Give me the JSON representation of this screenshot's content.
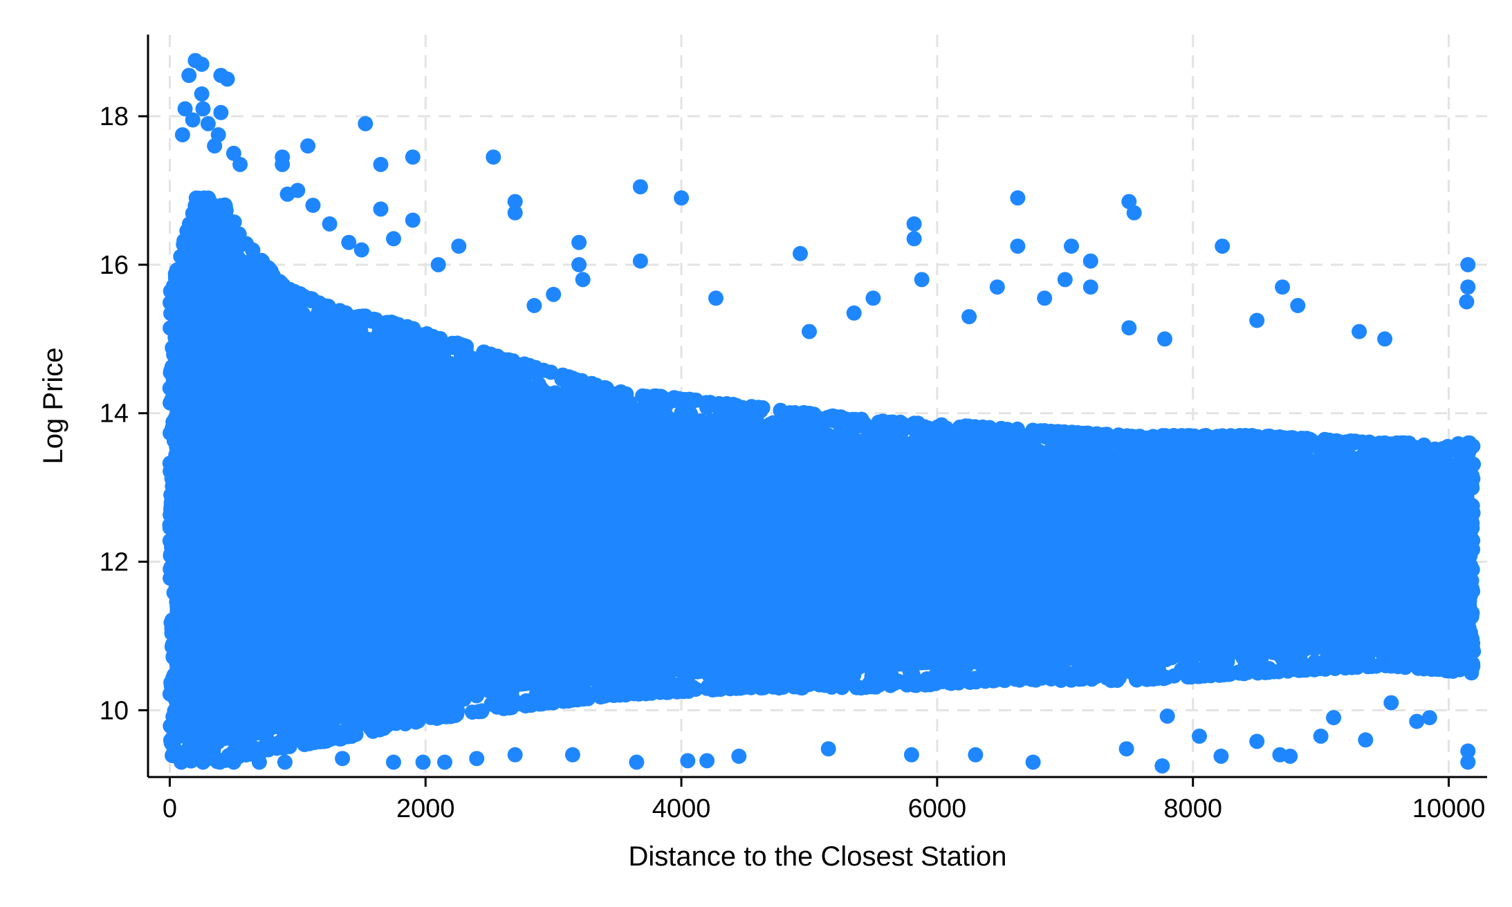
{
  "chart_data": {
    "type": "scatter",
    "title": "",
    "xlabel": "Distance to the Closest Station",
    "ylabel": "Log Price",
    "xlim": [
      -170,
      10300
    ],
    "ylim": [
      9.1,
      19.1
    ],
    "xticks": [
      0,
      2000,
      4000,
      6000,
      8000,
      10000
    ],
    "yticks": [
      10,
      12,
      14,
      16,
      18
    ],
    "xtick_labels": [
      "0",
      "2000",
      "4000",
      "6000",
      "8000",
      "10000"
    ],
    "ytick_labels": [
      "10",
      "12",
      "14",
      "16",
      "18"
    ],
    "grid": true,
    "marker_color": "#1e87ff",
    "series": [
      {
        "dense_band": [
          {
            "x": 0,
            "y_low": 9.4,
            "y_high": 15.6
          },
          {
            "x": 200,
            "y_low": 9.3,
            "y_high": 16.9
          },
          {
            "x": 400,
            "y_low": 9.3,
            "y_high": 16.9
          },
          {
            "x": 600,
            "y_low": 9.4,
            "y_high": 16.3
          },
          {
            "x": 900,
            "y_low": 9.5,
            "y_high": 15.7
          },
          {
            "x": 1300,
            "y_low": 9.6,
            "y_high": 15.4
          },
          {
            "x": 1800,
            "y_low": 9.8,
            "y_high": 15.2
          },
          {
            "x": 2500,
            "y_low": 10.0,
            "y_high": 14.8
          },
          {
            "x": 3500,
            "y_low": 10.2,
            "y_high": 14.3
          },
          {
            "x": 4500,
            "y_low": 10.3,
            "y_high": 14.1
          },
          {
            "x": 5500,
            "y_low": 10.3,
            "y_high": 13.9
          },
          {
            "x": 6500,
            "y_low": 10.4,
            "y_high": 13.8
          },
          {
            "x": 7500,
            "y_low": 10.4,
            "y_high": 13.7
          },
          {
            "x": 8500,
            "y_low": 10.5,
            "y_high": 13.7
          },
          {
            "x": 9500,
            "y_low": 10.6,
            "y_high": 13.6
          },
          {
            "x": 10200,
            "y_low": 10.5,
            "y_high": 13.6
          }
        ],
        "outliers": [
          {
            "x": 200,
            "y": 18.75
          },
          {
            "x": 250,
            "y": 18.7
          },
          {
            "x": 150,
            "y": 18.55
          },
          {
            "x": 400,
            "y": 18.55
          },
          {
            "x": 450,
            "y": 18.5
          },
          {
            "x": 250,
            "y": 18.3
          },
          {
            "x": 120,
            "y": 18.1
          },
          {
            "x": 260,
            "y": 18.1
          },
          {
            "x": 400,
            "y": 18.05
          },
          {
            "x": 180,
            "y": 17.95
          },
          {
            "x": 300,
            "y": 17.9
          },
          {
            "x": 100,
            "y": 17.75
          },
          {
            "x": 380,
            "y": 17.75
          },
          {
            "x": 350,
            "y": 17.6
          },
          {
            "x": 500,
            "y": 17.5
          },
          {
            "x": 550,
            "y": 17.35
          },
          {
            "x": 880,
            "y": 17.45
          },
          {
            "x": 880,
            "y": 17.35
          },
          {
            "x": 1080,
            "y": 17.6
          },
          {
            "x": 1530,
            "y": 17.9
          },
          {
            "x": 1650,
            "y": 17.35
          },
          {
            "x": 1900,
            "y": 17.45
          },
          {
            "x": 1000,
            "y": 17.0
          },
          {
            "x": 920,
            "y": 16.95
          },
          {
            "x": 1120,
            "y": 16.8
          },
          {
            "x": 1250,
            "y": 16.55
          },
          {
            "x": 1650,
            "y": 16.75
          },
          {
            "x": 1900,
            "y": 16.6
          },
          {
            "x": 1400,
            "y": 16.3
          },
          {
            "x": 1500,
            "y": 16.2
          },
          {
            "x": 1750,
            "y": 16.35
          },
          {
            "x": 2260,
            "y": 16.25
          },
          {
            "x": 2100,
            "y": 16.0
          },
          {
            "x": 2530,
            "y": 17.45
          },
          {
            "x": 2700,
            "y": 16.85
          },
          {
            "x": 2700,
            "y": 16.7
          },
          {
            "x": 3200,
            "y": 16.3
          },
          {
            "x": 3200,
            "y": 16.0
          },
          {
            "x": 3680,
            "y": 17.05
          },
          {
            "x": 3680,
            "y": 16.05
          },
          {
            "x": 4000,
            "y": 16.9
          },
          {
            "x": 4270,
            "y": 15.55
          },
          {
            "x": 4930,
            "y": 16.15
          },
          {
            "x": 5820,
            "y": 16.55
          },
          {
            "x": 5820,
            "y": 16.35
          },
          {
            "x": 5880,
            "y": 15.8
          },
          {
            "x": 6630,
            "y": 16.9
          },
          {
            "x": 6630,
            "y": 16.25
          },
          {
            "x": 6470,
            "y": 15.7
          },
          {
            "x": 6840,
            "y": 15.55
          },
          {
            "x": 7050,
            "y": 16.25
          },
          {
            "x": 7200,
            "y": 16.05
          },
          {
            "x": 7200,
            "y": 15.7
          },
          {
            "x": 7000,
            "y": 15.8
          },
          {
            "x": 7500,
            "y": 16.85
          },
          {
            "x": 7540,
            "y": 16.7
          },
          {
            "x": 8230,
            "y": 16.25
          },
          {
            "x": 8700,
            "y": 15.7
          },
          {
            "x": 8820,
            "y": 15.45
          },
          {
            "x": 9500,
            "y": 15.0
          },
          {
            "x": 10150,
            "y": 16.0
          },
          {
            "x": 10150,
            "y": 15.7
          },
          {
            "x": 10140,
            "y": 15.5
          },
          {
            "x": 5000,
            "y": 15.1
          },
          {
            "x": 5350,
            "y": 15.35
          },
          {
            "x": 5500,
            "y": 15.55
          },
          {
            "x": 6250,
            "y": 15.3
          },
          {
            "x": 2850,
            "y": 15.45
          },
          {
            "x": 3000,
            "y": 15.6
          },
          {
            "x": 3230,
            "y": 15.8
          },
          {
            "x": 7500,
            "y": 15.15
          },
          {
            "x": 7780,
            "y": 15.0
          },
          {
            "x": 8500,
            "y": 15.25
          },
          {
            "x": 9300,
            "y": 15.1
          },
          {
            "x": 50,
            "y": 9.4
          },
          {
            "x": 90,
            "y": 9.3
          },
          {
            "x": 300,
            "y": 9.35
          },
          {
            "x": 500,
            "y": 9.3
          },
          {
            "x": 700,
            "y": 9.3
          },
          {
            "x": 900,
            "y": 9.3
          },
          {
            "x": 1350,
            "y": 9.35
          },
          {
            "x": 1750,
            "y": 9.3
          },
          {
            "x": 1980,
            "y": 9.3
          },
          {
            "x": 2150,
            "y": 9.3
          },
          {
            "x": 2400,
            "y": 9.35
          },
          {
            "x": 2700,
            "y": 9.4
          },
          {
            "x": 3150,
            "y": 9.4
          },
          {
            "x": 3650,
            "y": 9.3
          },
          {
            "x": 4050,
            "y": 9.32
          },
          {
            "x": 4200,
            "y": 9.32
          },
          {
            "x": 4450,
            "y": 9.38
          },
          {
            "x": 5150,
            "y": 9.48
          },
          {
            "x": 5800,
            "y": 9.4
          },
          {
            "x": 6300,
            "y": 9.4
          },
          {
            "x": 6750,
            "y": 9.3
          },
          {
            "x": 7480,
            "y": 9.48
          },
          {
            "x": 7760,
            "y": 9.25
          },
          {
            "x": 8220,
            "y": 9.38
          },
          {
            "x": 8680,
            "y": 9.4
          },
          {
            "x": 8760,
            "y": 9.38
          },
          {
            "x": 10150,
            "y": 9.3
          },
          {
            "x": 10150,
            "y": 9.45
          },
          {
            "x": 8050,
            "y": 9.65
          },
          {
            "x": 8500,
            "y": 9.58
          },
          {
            "x": 9350,
            "y": 9.6
          },
          {
            "x": 9550,
            "y": 10.1
          },
          {
            "x": 9000,
            "y": 9.65
          },
          {
            "x": 9750,
            "y": 9.85
          },
          {
            "x": 9850,
            "y": 9.9
          },
          {
            "x": 7800,
            "y": 9.92
          },
          {
            "x": 9100,
            "y": 9.9
          }
        ]
      }
    ]
  }
}
